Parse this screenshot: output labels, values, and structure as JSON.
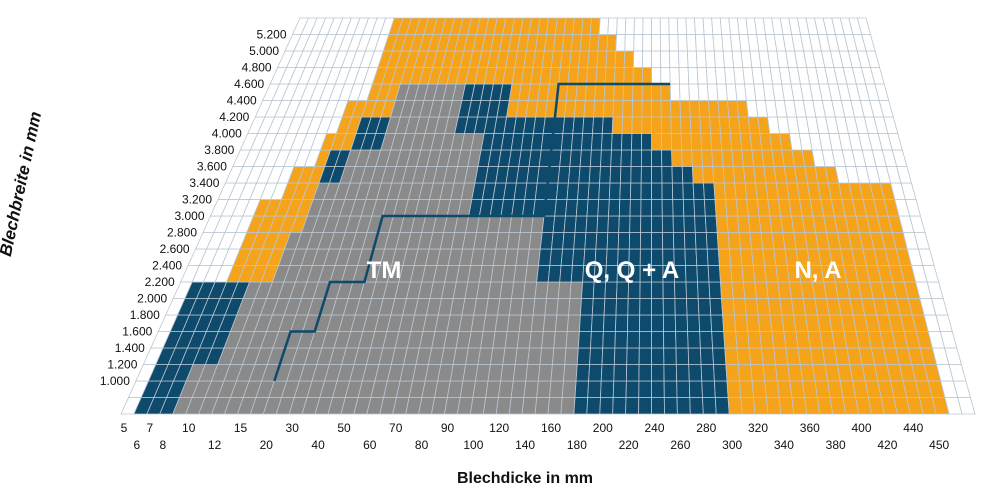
{
  "chart_data": {
    "type": "heatmap",
    "xlabel": "Blechdicke in mm",
    "ylabel": "Blechbreite in mm",
    "x_ticks": [
      "5",
      "6",
      "7",
      "8",
      "10",
      "12",
      "15",
      "20",
      "30",
      "40",
      "50",
      "60",
      "70",
      "80",
      "90",
      "100",
      "120",
      "140",
      "160",
      "180",
      "200",
      "220",
      "240",
      "260",
      "280",
      "300",
      "320",
      "340",
      "360",
      "380",
      "400",
      "420",
      "440",
      "450"
    ],
    "y_ticks": [
      "1.000",
      "1.200",
      "1.400",
      "1.600",
      "1.800",
      "2.000",
      "2.200",
      "2.400",
      "2.600",
      "2.800",
      "3.000",
      "3.200",
      "3.400",
      "3.600",
      "3.800",
      "4.000",
      "4.200",
      "4.400",
      "4.600",
      "4.800",
      "5.000",
      "5.200"
    ],
    "regions": [
      {
        "name": "TM",
        "color": "#8a8a8a"
      },
      {
        "name": "Q, Q + A",
        "color": "#0e4a6b"
      },
      {
        "name": "N, A",
        "color": "#f5a31a"
      }
    ],
    "colors": {
      "empty": "#ffffff",
      "grid": "#b9c6d2",
      "tm_line": "#0e4a6b"
    },
    "coverage_by_x_index": [
      {
        "from": 0,
        "to": 1,
        "n": 0,
        "q": 0,
        "tm": 0
      },
      {
        "from": 1,
        "to": 4,
        "n": 8,
        "q": 8,
        "tm": 0
      },
      {
        "from": 4,
        "to": 6,
        "n": 13,
        "q": 8,
        "tm": 3
      },
      {
        "from": 6,
        "to": 8,
        "n": 15,
        "q": 8,
        "tm": 8
      },
      {
        "from": 8,
        "to": 9,
        "n": 17,
        "q": 8,
        "tm": 11
      },
      {
        "from": 9,
        "to": 11,
        "n": 19,
        "q": 16,
        "tm": 14
      },
      {
        "from": 11,
        "to": 14,
        "n": 24,
        "q": 18,
        "tm": 16
      },
      {
        "from": 14,
        "to": 21,
        "n": 24,
        "q": 20,
        "tm": 20
      },
      {
        "from": 21,
        "to": 24,
        "n": 24,
        "q": 20,
        "tm": 17
      },
      {
        "from": 24,
        "to": 26,
        "n": 24,
        "q": 20,
        "tm": 12
      },
      {
        "from": 26,
        "to": 31,
        "n": 24,
        "q": 18,
        "tm": 12
      },
      {
        "from": 31,
        "to": 35,
        "n": 24,
        "q": 18,
        "tm": 8
      },
      {
        "from": 35,
        "to": 37,
        "n": 23,
        "q": 18,
        "tm": 0
      },
      {
        "from": 37,
        "to": 39,
        "n": 22,
        "q": 17,
        "tm": 0
      },
      {
        "from": 39,
        "to": 41,
        "n": 21,
        "q": 17,
        "tm": 0
      },
      {
        "from": 41,
        "to": 43,
        "n": 20,
        "q": 16,
        "tm": 0
      },
      {
        "from": 43,
        "to": 45,
        "n": 19,
        "q": 15,
        "tm": 0
      },
      {
        "from": 45,
        "to": 47,
        "n": 19,
        "q": 14,
        "tm": 0
      },
      {
        "from": 47,
        "to": 51,
        "n": 19,
        "q": 0,
        "tm": 0
      },
      {
        "from": 51,
        "to": 53,
        "n": 18,
        "q": 0,
        "tm": 0
      },
      {
        "from": 53,
        "to": 55,
        "n": 17,
        "q": 0,
        "tm": 0
      },
      {
        "from": 55,
        "to": 57,
        "n": 16,
        "q": 0,
        "tm": 0
      },
      {
        "from": 57,
        "to": 59,
        "n": 15,
        "q": 0,
        "tm": 0
      },
      {
        "from": 59,
        "to": 64,
        "n": 14,
        "q": 0,
        "tm": 0
      },
      {
        "from": 64,
        "to": 66,
        "n": 0,
        "q": 0,
        "tm": 0
      }
    ]
  }
}
